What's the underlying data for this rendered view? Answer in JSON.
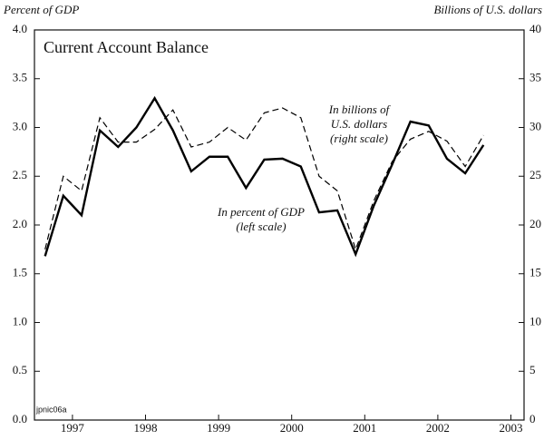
{
  "chart_data": {
    "type": "line",
    "title": "Current Account Balance",
    "y_label": "Percent of GDP",
    "y2_label": "Billions of U.S. dollars",
    "annotations": [
      "In billions of",
      "U.S. dollars",
      "(right scale)",
      "In percent of GDP",
      "(left scale)",
      "jpnic06a"
    ],
    "x": [
      1996.625,
      1996.875,
      1997.125,
      1997.375,
      1997.625,
      1997.875,
      1998.125,
      1998.375,
      1998.625,
      1998.875,
      1999.125,
      1999.375,
      1999.625,
      1999.875,
      2000.125,
      2000.375,
      2000.625,
      2000.875,
      2001.125,
      2001.375,
      2001.625,
      2001.875,
      2002.125,
      2002.375,
      2002.625
    ],
    "series": [
      {
        "name": "In percent of GDP",
        "color": "#000000",
        "dash": false,
        "axis": "y",
        "values": [
          1.68,
          2.3,
          2.1,
          2.97,
          2.8,
          3.0,
          3.3,
          2.97,
          2.55,
          2.7,
          2.7,
          2.38,
          2.67,
          2.68,
          2.6,
          2.13,
          2.15,
          1.7,
          2.2,
          2.62,
          3.06,
          3.02,
          2.68,
          2.53,
          2.82
        ]
      },
      {
        "name": "In billions of U.S. dollars",
        "color": "#000000",
        "dash": true,
        "axis": "y2",
        "values": [
          17.5,
          25,
          23.5,
          31,
          28.5,
          28.5,
          29.8,
          31.8,
          28,
          28.5,
          30,
          28.7,
          31.5,
          32,
          31,
          25,
          23.5,
          17.5,
          22.5,
          26.5,
          28.8,
          29.6,
          28.6,
          26,
          29.2
        ]
      }
    ],
    "xlim": [
      1996.48,
      2003.18
    ],
    "xticks": [
      1997,
      1998,
      1999,
      2000,
      2001,
      2002,
      2003
    ],
    "ylim": [
      0,
      4
    ],
    "yticks": [
      {
        "value": 0,
        "label": "0.0"
      },
      {
        "value": 0.5,
        "label": "0.5"
      },
      {
        "value": 1,
        "label": "1.0"
      },
      {
        "value": 1.5,
        "label": "1.5"
      },
      {
        "value": 2,
        "label": "2.0"
      },
      {
        "value": 2.5,
        "label": "2.5"
      },
      {
        "value": 3,
        "label": "3.0"
      },
      {
        "value": 3.5,
        "label": "3.5"
      },
      {
        "value": 4,
        "label": "4.0"
      }
    ],
    "y2lim": [
      0,
      40
    ],
    "y2ticks": [
      0,
      5,
      10,
      15,
      20,
      25,
      30,
      35,
      40
    ]
  }
}
